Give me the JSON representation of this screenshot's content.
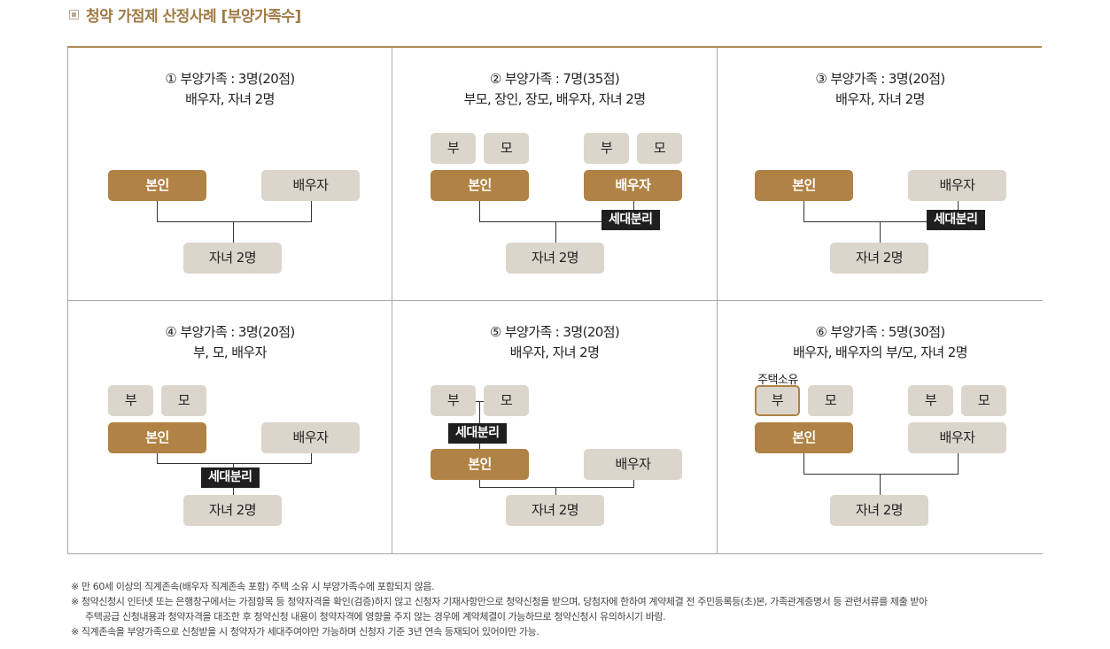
{
  "header": {
    "title": "청약 가점제 산정사례 [부양가족수]"
  },
  "labels": {
    "self": "본인",
    "spouse": "배우자",
    "children": "자녀 2명",
    "father": "부",
    "mother": "모",
    "separate": "세대분리",
    "house_owner": "주택소유"
  },
  "cases": [
    {
      "line1": "① 부양가족 : 3명(20점)",
      "line2": "배우자, 자녀 2명"
    },
    {
      "line1": "② 부양가족 : 7명(35점)",
      "line2": "부모, 장인, 장모, 배우자, 자녀 2명"
    },
    {
      "line1": "③ 부양가족 : 3명(20점)",
      "line2": "배우자, 자녀 2명"
    },
    {
      "line1": "④ 부양가족 : 3명(20점)",
      "line2": "부, 모, 배우자"
    },
    {
      "line1": "⑤ 부양가족 : 3명(20점)",
      "line2": "배우자, 자녀 2명"
    },
    {
      "line1": "⑥ 부양가족 : 5명(30점)",
      "line2": "배우자, 배우자의 부/모, 자녀 2명"
    }
  ],
  "notes": [
    "※ 만 60세 이상의 직계존속(배우자 직계존속 포함) 주택 소유 시 부양가족수에 포함되지 않음.",
    "※ 청약신청시 인터넷 또는 은행창구에서는 가점항목 등 청약자격을 확인(검증)하지 않고 신청자 기재사항만으로 청약신청을 받으며, 당첨자에 한하여 계약체결 전 주민등록등(초)본, 가족관계증명서 등 관련서류를  제출 받아",
    "주택공급 신청내용과 청약자격을 대조한 후 청약신청 내용이 청약자격에 영향을 주지 않는 경우에 계약체결이 가능하므로 청약신청시 유의하시기 바람.",
    "※ 직계존속을 부양가족으로 신청받을 시 청약자가 세대주여야만 가능하며 신청자 기준 3년 연속 등재되어 있어야만 가능."
  ]
}
